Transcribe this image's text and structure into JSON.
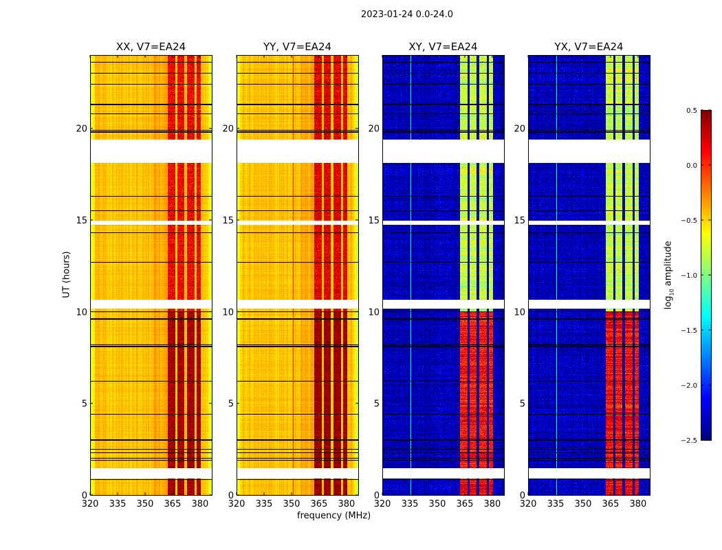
{
  "suptitle": "2023-01-24 0.0-24.0",
  "chart_data": {
    "type": "heatmap",
    "xlabel": "frequency (MHz)",
    "ylabel": "UT (hours)",
    "xlim": [
      320,
      386.4
    ],
    "ylim": [
      0,
      24
    ],
    "xticks": [
      320,
      335,
      350,
      365,
      380
    ],
    "yticks": [
      0,
      5,
      10,
      15,
      20
    ],
    "colorbar": {
      "label": "log10 amplitude",
      "label_main": "log",
      "label_sub": "10",
      "label_rest": " amplitude",
      "colormap": "jet",
      "vmin": -2.5,
      "vmax": 0.5,
      "ticks": [
        "0.5",
        "0.0",
        "−0.5",
        "−1.0",
        "−1.5",
        "−2.0",
        "−2.5"
      ],
      "tick_values": [
        0.5,
        0.0,
        -0.5,
        -1.0,
        -1.5,
        -2.0,
        -2.5
      ]
    },
    "flagged_ut_intervals": [
      [
        18.1,
        19.4
      ],
      [
        14.75,
        14.95
      ],
      [
        10.15,
        10.65
      ],
      [
        0.9,
        1.45
      ]
    ],
    "dark_ut_lines": [
      23.6,
      23.0,
      22.4,
      21.3,
      20.8,
      19.9,
      19.8,
      16.3,
      15.5,
      14.3,
      12.7,
      10.0,
      9.6,
      8.2,
      8.1,
      6.2,
      4.4,
      3.0,
      2.5,
      2.3,
      2.0,
      1.9,
      0.85
    ],
    "band_channels_mhz": [
      [
        362.5,
        366.5
      ],
      [
        367.5,
        371.5
      ],
      [
        373,
        377
      ],
      [
        378,
        380.5
      ]
    ],
    "panels": [
      {
        "title": "XX, V7=EA24",
        "kind": "parallel",
        "base_log_amp": -0.45,
        "band_log_amp_late": 0.15,
        "band_log_amp_early": 0.4,
        "rfi_line_mhz": null
      },
      {
        "title": "YY, V7=EA24",
        "kind": "parallel",
        "base_log_amp": -0.45,
        "band_log_amp_late": 0.2,
        "band_log_amp_early": 0.45,
        "rfi_line_mhz": 350.9
      },
      {
        "title": "XY, V7=EA24",
        "kind": "cross",
        "base_log_amp": -2.35,
        "band_log_amp_late": -0.8,
        "band_log_amp_early": 0.1,
        "rfi_line_mhz": 335.5
      },
      {
        "title": "YX, V7=EA24",
        "kind": "cross",
        "base_log_amp": -2.35,
        "band_log_amp_late": -0.8,
        "band_log_amp_early": 0.1,
        "rfi_line_mhz": 335.5
      }
    ]
  }
}
